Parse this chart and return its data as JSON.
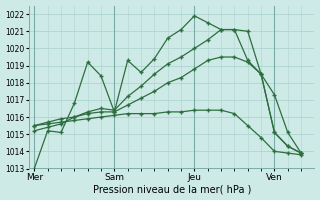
{
  "bg_color": "#ceeae7",
  "grid_color": "#aed4d0",
  "line_color": "#2d6e3e",
  "title": "Pression niveau de la mer( hPa )",
  "ylim": [
    1013,
    1022.5
  ],
  "yticks": [
    1013,
    1014,
    1015,
    1016,
    1017,
    1018,
    1019,
    1020,
    1021,
    1022
  ],
  "xlabels": [
    "Mer",
    "Sam",
    "Jeu",
    "Ven"
  ],
  "xpositions": [
    0,
    3,
    6,
    9
  ],
  "vlines": [
    0,
    3,
    6,
    9
  ],
  "series": [
    {
      "x": [
        0,
        0.5,
        1.0,
        1.5,
        2.0,
        2.5,
        3.0,
        3.5,
        4.0,
        4.5,
        5.0,
        5.5,
        6.0,
        6.5,
        7.0,
        7.5,
        8.0,
        8.5,
        9.0,
        9.5,
        10.0
      ],
      "y": [
        1013.0,
        1015.2,
        1015.1,
        1016.8,
        1019.2,
        1018.4,
        1016.3,
        1019.3,
        1018.6,
        1019.4,
        1020.6,
        1021.1,
        1021.9,
        1021.5,
        1021.1,
        1021.1,
        1019.3,
        1018.5,
        1015.1,
        1014.3,
        1013.9
      ]
    },
    {
      "x": [
        0,
        0.5,
        1.0,
        1.5,
        2.0,
        2.5,
        3.0,
        3.5,
        4.0,
        4.5,
        5.0,
        5.5,
        6.0,
        6.5,
        7.0,
        7.5,
        8.0,
        8.5,
        9.0,
        9.5,
        10.0
      ],
      "y": [
        1015.2,
        1015.4,
        1015.6,
        1016.0,
        1016.3,
        1016.5,
        1016.4,
        1017.2,
        1017.8,
        1018.5,
        1019.1,
        1019.5,
        1020.0,
        1020.5,
        1021.1,
        1021.1,
        1021.0,
        1018.5,
        1017.3,
        1015.1,
        1013.9
      ]
    },
    {
      "x": [
        0,
        0.5,
        1.0,
        1.5,
        2.0,
        2.5,
        3.0,
        3.5,
        4.0,
        4.5,
        5.0,
        5.5,
        6.0,
        6.5,
        7.0,
        7.5,
        8.0,
        8.5,
        9.0,
        9.5,
        10.0
      ],
      "y": [
        1015.5,
        1015.7,
        1015.9,
        1016.0,
        1016.2,
        1016.3,
        1016.3,
        1016.7,
        1017.1,
        1017.5,
        1018.0,
        1018.3,
        1018.8,
        1019.3,
        1019.5,
        1019.5,
        1019.2,
        1018.5,
        1015.1,
        1014.3,
        1013.9
      ]
    },
    {
      "x": [
        0,
        0.5,
        1.0,
        1.5,
        2.0,
        2.5,
        3.0,
        3.5,
        4.0,
        4.5,
        5.0,
        5.5,
        6.0,
        6.5,
        7.0,
        7.5,
        8.0,
        8.5,
        9.0,
        9.5,
        10.0
      ],
      "y": [
        1015.5,
        1015.6,
        1015.7,
        1015.8,
        1015.9,
        1016.0,
        1016.1,
        1016.2,
        1016.2,
        1016.2,
        1016.3,
        1016.3,
        1016.4,
        1016.4,
        1016.4,
        1016.2,
        1015.5,
        1014.8,
        1014.0,
        1013.9,
        1013.8
      ]
    }
  ]
}
